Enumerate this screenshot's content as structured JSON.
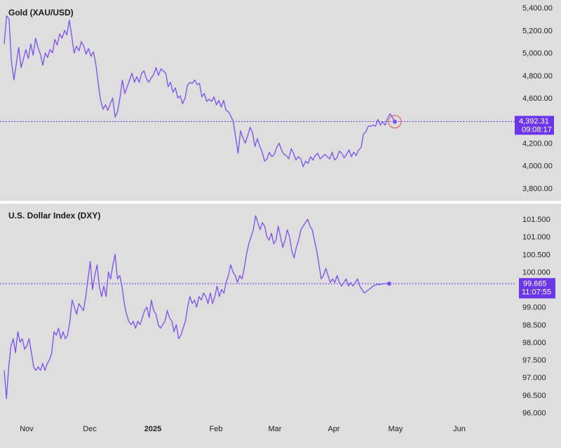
{
  "chart_data": [
    {
      "type": "line",
      "title": "Gold (XAU/USD)",
      "ylim": [
        3700,
        5420
      ],
      "yticks": [
        3800,
        4000,
        4200,
        4400,
        4600,
        4800,
        5000,
        5200,
        5400
      ],
      "ytick_labels": [
        "3,800.00",
        "4,000.00",
        "4,200.00",
        "4,400.00",
        "4,600.00",
        "4,800.00",
        "5,000.00",
        "5,200.00",
        "5,400.00"
      ],
      "last_price": 4392.31,
      "last_price_label": "4,392.31",
      "countdown": "09:08:17",
      "line_color": "#7b4ff0",
      "marker_ring_color": "#e24a4a",
      "x": [
        0,
        1,
        2,
        3,
        4,
        5,
        6,
        7,
        8,
        9,
        10,
        11,
        12,
        13,
        14,
        15,
        16,
        17,
        18,
        19,
        20,
        21,
        22,
        23,
        24,
        25,
        26,
        27,
        28,
        29,
        30,
        31,
        32,
        33,
        34,
        35,
        36,
        37,
        38,
        39,
        40,
        41,
        42,
        43,
        44,
        45,
        46,
        47,
        48,
        49,
        50,
        51,
        52,
        53,
        54,
        55,
        56,
        57,
        58,
        59,
        60,
        61,
        62,
        63,
        64,
        65,
        66,
        67,
        68,
        69,
        70,
        71,
        72,
        73,
        74,
        75,
        76,
        77,
        78,
        79,
        80,
        81,
        82,
        83,
        84,
        85,
        86,
        87,
        88,
        89,
        90,
        91,
        92,
        93,
        94,
        95,
        96,
        97,
        98,
        99,
        100,
        101,
        102,
        103,
        104,
        105,
        106,
        107,
        108,
        109,
        110,
        111,
        112,
        113,
        114,
        115,
        116,
        117,
        118,
        119,
        120,
        121,
        122,
        123,
        124,
        125,
        126,
        127,
        128,
        129,
        130,
        131,
        132,
        133,
        134,
        135,
        136,
        137,
        138,
        139,
        140,
        141,
        142,
        143,
        144,
        145,
        146,
        147,
        148,
        149,
        150,
        151,
        152,
        153,
        154,
        155,
        156,
        157,
        158,
        159,
        160,
        161,
        162
      ],
      "values": [
        5080,
        5330,
        5300,
        4930,
        4760,
        4900,
        5050,
        4870,
        4950,
        5030,
        4950,
        5080,
        4980,
        5130,
        5050,
        4990,
        4890,
        5000,
        4960,
        5030,
        5000,
        5120,
        5070,
        5170,
        5130,
        5200,
        5160,
        5290,
        5150,
        5000,
        5060,
        5020,
        5100,
        5060,
        4990,
        5040,
        4970,
        5010,
        4900,
        4730,
        4580,
        4500,
        4540,
        4490,
        4550,
        4600,
        4430,
        4480,
        4600,
        4760,
        4640,
        4700,
        4760,
        4820,
        4740,
        4790,
        4740,
        4820,
        4840,
        4770,
        4740,
        4780,
        4810,
        4870,
        4800,
        4860,
        4840,
        4820,
        4700,
        4740,
        4650,
        4690,
        4600,
        4620,
        4550,
        4600,
        4710,
        4740,
        4730,
        4760,
        4720,
        4730,
        4610,
        4640,
        4570,
        4590,
        4570,
        4610,
        4540,
        4580,
        4520,
        4580,
        4490,
        4480,
        4440,
        4390,
        4250,
        4110,
        4310,
        4250,
        4200,
        4270,
        4340,
        4290,
        4170,
        4240,
        4170,
        4120,
        4040,
        4060,
        4120,
        4080,
        4100,
        4160,
        4200,
        4140,
        4100,
        4090,
        4060,
        4150,
        4110,
        4050,
        4080,
        4060,
        3990,
        4040,
        4020,
        4080,
        4050,
        4090,
        4110,
        4060,
        4080,
        4100,
        4080,
        4060,
        4120,
        4050,
        4070,
        4130,
        4110,
        4070,
        4100,
        4140,
        4080,
        4120,
        4090,
        4140,
        4160,
        4280,
        4300,
        4350,
        4350,
        4360,
        4350,
        4410,
        4360,
        4390,
        4360,
        4420,
        4460,
        4430,
        4390
      ]
    },
    {
      "type": "line",
      "title": "U.S. Dollar Index (DXY)",
      "ylim": [
        95.87,
        101.84
      ],
      "yticks": [
        96,
        96.5,
        97,
        97.5,
        98,
        98.5,
        99,
        99.5,
        100,
        100.5,
        101,
        101.5
      ],
      "ytick_labels": [
        "96.000",
        "96.500",
        "97.000",
        "97.500",
        "98.000",
        "98.500",
        "99.000",
        "99.500",
        "100.000",
        "100.500",
        "101.000",
        "101.500"
      ],
      "last_price": 99.665,
      "last_price_label": "99.665",
      "countdown": "11:07:55",
      "line_color": "#7b4ff0",
      "x": [
        0,
        1,
        2,
        3,
        4,
        5,
        6,
        7,
        8,
        9,
        10,
        11,
        12,
        13,
        14,
        15,
        16,
        17,
        18,
        19,
        20,
        21,
        22,
        23,
        24,
        25,
        26,
        27,
        28,
        29,
        30,
        31,
        32,
        33,
        34,
        35,
        36,
        37,
        38,
        39,
        40,
        41,
        42,
        43,
        44,
        45,
        46,
        47,
        48,
        49,
        50,
        51,
        52,
        53,
        54,
        55,
        56,
        57,
        58,
        59,
        60,
        61,
        62,
        63,
        64,
        65,
        66,
        67,
        68,
        69,
        70,
        71,
        72,
        73,
        74,
        75,
        76,
        77,
        78,
        79,
        80,
        81,
        82,
        83,
        84,
        85,
        86,
        87,
        88,
        89,
        90,
        91,
        92,
        93,
        94,
        95,
        96,
        97,
        98,
        99,
        100,
        101,
        102,
        103,
        104,
        105,
        106,
        107,
        108,
        109,
        110,
        111,
        112,
        113,
        114,
        115,
        116,
        117,
        118,
        119,
        120,
        121,
        122,
        123,
        124,
        125,
        126,
        127,
        128,
        129,
        130,
        131,
        132,
        133,
        134,
        135,
        136,
        137,
        138,
        139,
        140,
        141,
        142,
        143,
        144,
        145,
        146,
        147,
        148,
        149,
        150,
        151,
        152,
        153,
        154,
        155,
        156,
        157,
        158,
        159,
        160,
        161,
        162,
        163,
        164,
        165,
        166,
        167,
        168,
        169,
        170
      ],
      "values": [
        97.2,
        96.4,
        97.3,
        97.9,
        98.1,
        97.7,
        98.3,
        98.0,
        98.1,
        97.8,
        97.9,
        98.1,
        97.7,
        97.3,
        97.2,
        97.3,
        97.2,
        97.4,
        97.2,
        97.4,
        97.5,
        97.7,
        98.3,
        98.2,
        98.4,
        98.1,
        98.3,
        98.1,
        98.2,
        98.6,
        99.2,
        99.0,
        98.8,
        99.1,
        99.0,
        98.9,
        99.3,
        99.8,
        100.3,
        99.5,
        99.9,
        100.2,
        99.6,
        99.3,
        99.6,
        99.3,
        100.0,
        99.8,
        100.2,
        100.5,
        99.8,
        99.9,
        99.6,
        99.1,
        98.8,
        98.6,
        98.5,
        98.6,
        98.4,
        98.6,
        98.5,
        98.7,
        98.9,
        99.0,
        98.7,
        99.2,
        98.9,
        98.8,
        98.5,
        98.4,
        98.5,
        98.6,
        98.9,
        98.7,
        98.6,
        98.3,
        98.5,
        98.1,
        98.2,
        98.4,
        98.6,
        99.0,
        99.3,
        99.1,
        99.2,
        99.0,
        99.3,
        99.2,
        99.4,
        99.3,
        99.1,
        99.4,
        99.1,
        99.3,
        99.6,
        99.3,
        99.5,
        99.4,
        99.7,
        99.9,
        100.2,
        100.0,
        99.9,
        99.7,
        99.9,
        99.8,
        100.1,
        100.5,
        100.8,
        101.0,
        101.2,
        101.6,
        101.4,
        101.2,
        101.4,
        101.3,
        101.0,
        100.9,
        101.1,
        100.8,
        100.9,
        101.3,
        101.0,
        100.7,
        100.9,
        101.2,
        101.0,
        100.6,
        100.4,
        100.7,
        100.9,
        101.2,
        101.3,
        101.4,
        101.5,
        101.3,
        101.2,
        100.9,
        100.6,
        100.2,
        99.8,
        99.9,
        100.1,
        99.9,
        99.7,
        99.8,
        99.7,
        99.9,
        99.7,
        99.6,
        99.7,
        99.8,
        99.6,
        99.7,
        99.6,
        99.7,
        99.8,
        99.6,
        99.5,
        99.4,
        99.45,
        99.5,
        99.55,
        99.6,
        99.63,
        99.65,
        99.64,
        99.66,
        99.665,
        99.67,
        99.665
      ]
    }
  ],
  "x_axis": {
    "labels": [
      {
        "text": "Nov",
        "bold": false
      },
      {
        "text": "Dec",
        "bold": false
      },
      {
        "text": "2025",
        "bold": true
      },
      {
        "text": "Feb",
        "bold": false
      },
      {
        "text": "Mar",
        "bold": false
      },
      {
        "text": "Apr",
        "bold": false
      },
      {
        "text": "May",
        "bold": false
      },
      {
        "text": "Jun",
        "bold": false
      }
    ]
  },
  "colors": {
    "background": "#dedede",
    "gridline": "#d4d4d4",
    "divider": "#ffffff",
    "price_line": "#6b3df0",
    "price_tag": "#6a36e8"
  }
}
